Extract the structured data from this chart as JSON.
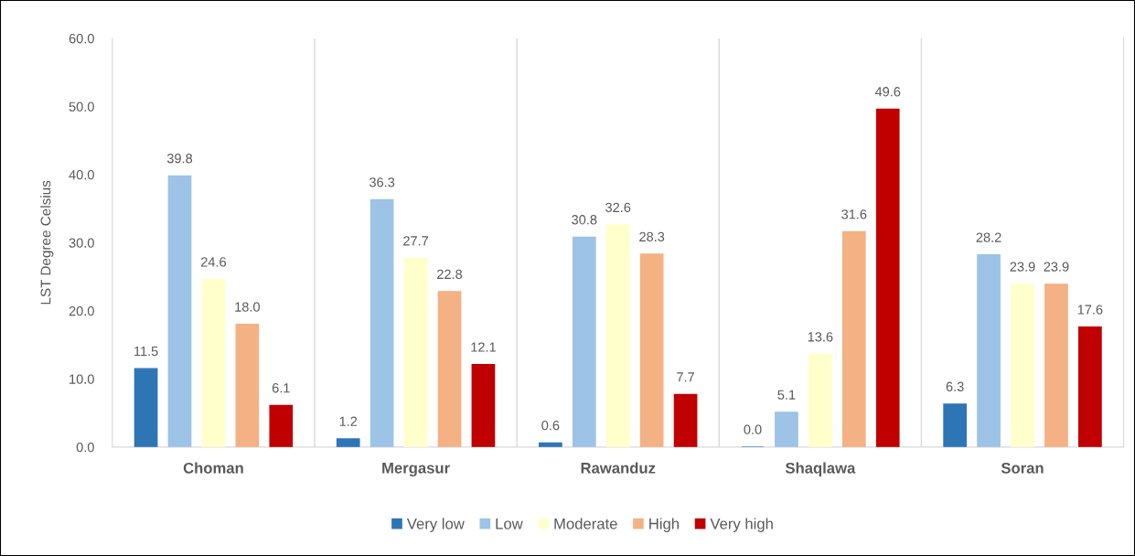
{
  "chart_data": {
    "type": "bar",
    "ylabel": "LST Degree Celsius",
    "categories": [
      "Choman",
      "Mergasur",
      "Rawanduz",
      "Shaqlawa",
      "Soran"
    ],
    "series": [
      {
        "name": "Very low",
        "color": "#2e75b6",
        "values": [
          11.5,
          1.2,
          0.6,
          0,
          6.3
        ],
        "value_labels": [
          "11.5",
          "1.2",
          "0.6",
          "0.0",
          "6.3"
        ]
      },
      {
        "name": "Low",
        "color": "#9dc3e6",
        "values": [
          39.8,
          36.3,
          30.8,
          5.1,
          28.2
        ],
        "value_labels": [
          "39.8",
          "36.3",
          "30.8",
          "5.1",
          "28.2"
        ]
      },
      {
        "name": "Moderate",
        "color": "#ffffcc",
        "values": [
          24.6,
          27.7,
          32.6,
          13.6,
          23.9
        ],
        "value_labels": [
          "24.6",
          "27.7",
          "32.6",
          "13.6",
          "23.9"
        ]
      },
      {
        "name": "High",
        "color": "#f4b183",
        "values": [
          18,
          22.8,
          28.3,
          31.6,
          23.9
        ],
        "value_labels": [
          "18.0",
          "22.8",
          "28.3",
          "31.6",
          "23.9"
        ]
      },
      {
        "name": "Very high",
        "color": "#c00000",
        "values": [
          6.1,
          12.1,
          7.7,
          49.6,
          17.6
        ],
        "value_labels": [
          "6.1",
          "12.1",
          "7.7",
          "49.6",
          "17.6"
        ]
      }
    ],
    "ylim": [
      0,
      60
    ],
    "yticks": [
      {
        "value": 0,
        "label": "0.0"
      },
      {
        "value": 10,
        "label": "10.0"
      },
      {
        "value": 20,
        "label": "20.0"
      },
      {
        "value": 30,
        "label": "30.0"
      },
      {
        "value": 40,
        "label": "40.0"
      },
      {
        "value": 50,
        "label": "50.0"
      },
      {
        "value": 60,
        "label": "60.0"
      }
    ],
    "grid": "x",
    "legend": "bottom"
  }
}
